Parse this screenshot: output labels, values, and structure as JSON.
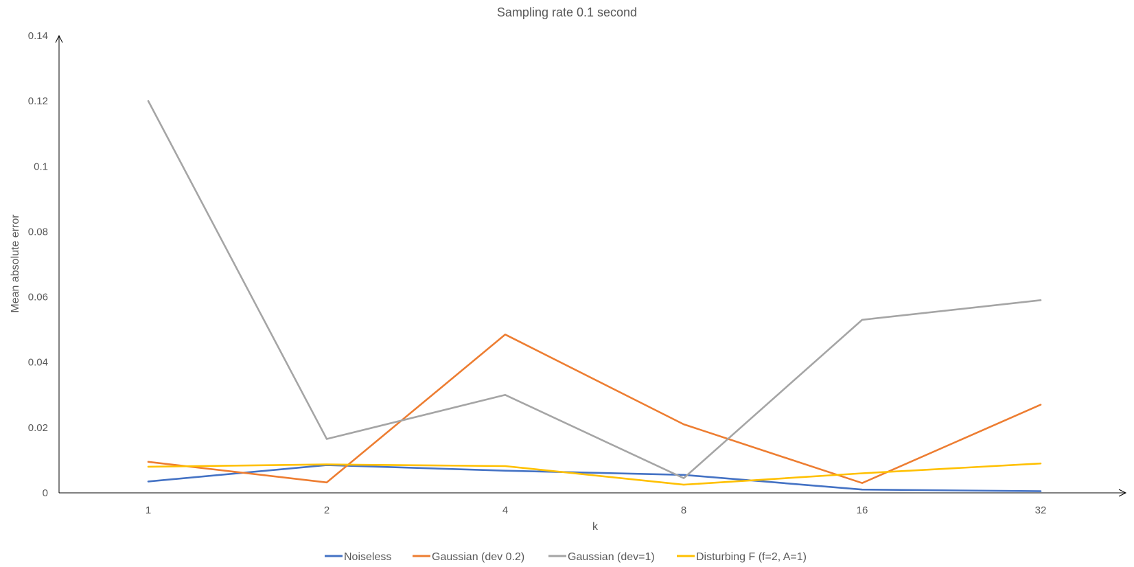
{
  "chart_data": {
    "type": "line",
    "title": "Sampling rate 0.1 second",
    "xlabel": "k",
    "ylabel": "Mean absolute error",
    "categories": [
      "1",
      "2",
      "4",
      "8",
      "16",
      "32"
    ],
    "y_ticks": [
      "0",
      "0.02",
      "0.04",
      "0.06",
      "0.08",
      "0.1",
      "0.12",
      "0.14"
    ],
    "ylim": [
      0,
      0.14
    ],
    "grid": false,
    "legend_position": "bottom",
    "series": [
      {
        "name": "Noiseless",
        "color": "#4472C4",
        "values": [
          0.0035,
          0.0085,
          0.0068,
          0.0055,
          0.001,
          0.0005
        ]
      },
      {
        "name": "Gaussian (dev 0.2)",
        "color": "#ED7D31",
        "values": [
          0.0095,
          0.0032,
          0.0485,
          0.021,
          0.003,
          0.027
        ]
      },
      {
        "name": "Gaussian (dev=1)",
        "color": "#A5A5A5",
        "values": [
          0.12,
          0.0165,
          0.03,
          0.0045,
          0.053,
          0.059
        ]
      },
      {
        "name": "Disturbing F (f=2, A=1)",
        "color": "#FFC000",
        "values": [
          0.008,
          0.0087,
          0.0082,
          0.0025,
          0.006,
          0.009
        ]
      }
    ]
  }
}
